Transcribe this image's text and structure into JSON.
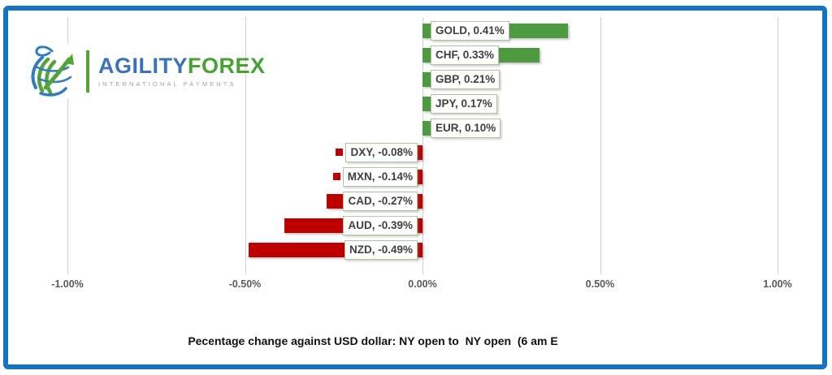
{
  "logo": {
    "name_part1": "AGILITY",
    "name_part2": "FOREX",
    "tagline": "INTERNATIONAL PAYMENTS"
  },
  "chart_data": {
    "type": "bar",
    "orientation": "horizontal",
    "categories": [
      "GOLD",
      "CHF",
      "GBP",
      "JPY",
      "EUR",
      "DXY",
      "MXN",
      "CAD",
      "AUD",
      "NZD"
    ],
    "values": [
      0.41,
      0.33,
      0.21,
      0.17,
      0.1,
      -0.08,
      -0.14,
      -0.27,
      -0.39,
      -0.49
    ],
    "labels": [
      "GOLD, 0.41%",
      "CHF, 0.33%",
      "GBP, 0.21%",
      "JPY, 0.17%",
      "EUR, 0.10%",
      "DXY, -0.08%",
      "MXN, -0.14%",
      "CAD, -0.27%",
      "AUD, -0.39%",
      "NZD, -0.49%"
    ],
    "title": "Pecentage change against USD dollar: NY open to  NY open  (6 am E",
    "x_ticks": [
      {
        "label": "-1.00%",
        "value": -1.0
      },
      {
        "label": "-0.50%",
        "value": -0.5
      },
      {
        "label": "0.00%",
        "value": 0.0
      },
      {
        "label": "0.50%",
        "value": 0.5
      },
      {
        "label": "1.00%",
        "value": 1.0
      }
    ],
    "xlim": [
      -1.0,
      1.0
    ],
    "gridlines": true,
    "legend_position": "none",
    "positive_color": "#4E9A41",
    "negative_color": "#BE0000",
    "label_box_border_color": "#A9C79B",
    "frame_border_color": "#1673C1"
  }
}
